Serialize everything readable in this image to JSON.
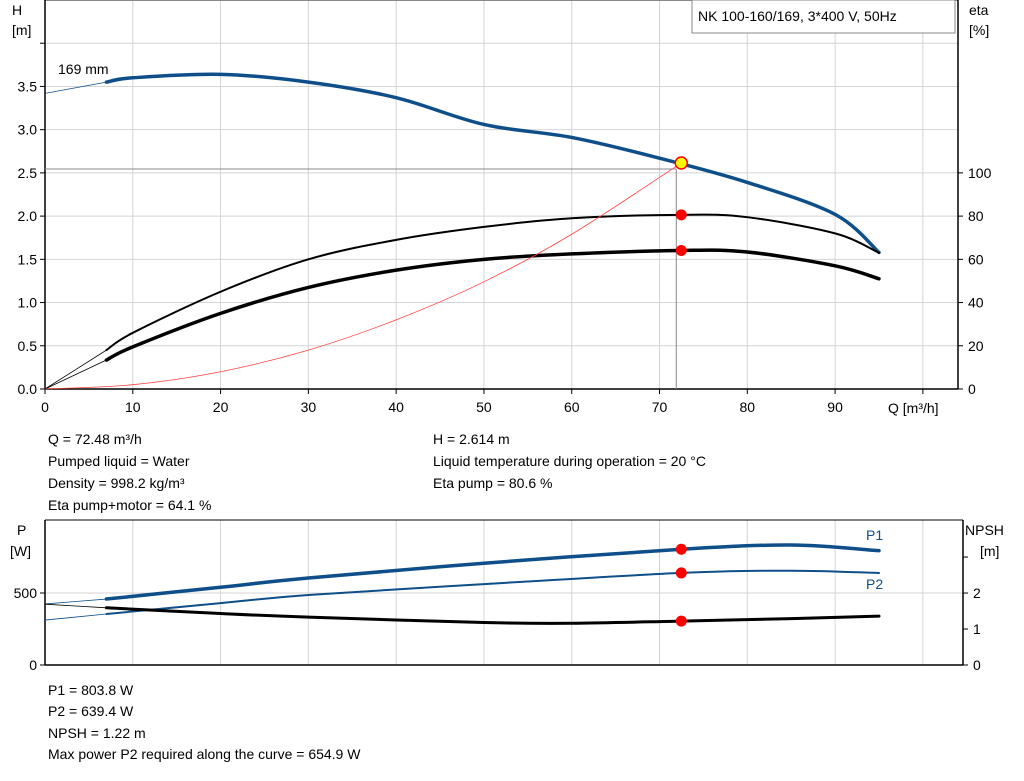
{
  "title_box": "NK 100-160/169, 3*400 V, 50Hz",
  "colors": {
    "head": "#0e4f8a",
    "power": "#0e4f8a",
    "efficiency": "#000000",
    "npsh": "#000000",
    "system": "#ff4040",
    "duty_point": "#ff0000",
    "duty_point_head": "#ffff00"
  },
  "info_top": [
    "Q = 72.48 m³/h",
    "Pumped liquid = Water",
    "Density = 998.2 kg/m³",
    "Eta pump+motor = 64.1 %"
  ],
  "info_top_right": [
    "H = 2.614 m",
    "Liquid temperature during operation = 20 °C",
    "Eta pump = 80.6 %"
  ],
  "info_bottom": [
    "P1 = 803.8 W",
    "P2 = 639.4 W",
    "NPSH = 1.22 m",
    "Max power P2 required along the curve = 654.9 W"
  ],
  "chart_data": [
    {
      "type": "line",
      "xlabel": "Q [m³/h]",
      "ylabel": "H\n[m]",
      "ylabel_lines": [
        "H",
        "[m]"
      ],
      "y2label_lines": [
        "eta",
        "[%]"
      ],
      "xlim": [
        0,
        104
      ],
      "ylim": [
        0,
        4.5
      ],
      "y2lim": [
        0,
        180
      ],
      "xticks": [
        "0",
        "10",
        "20",
        "30",
        "40",
        "50",
        "60",
        "70",
        "80",
        "90"
      ],
      "yticks": [
        "0.0",
        "0.5",
        "1.0",
        "1.5",
        "2.0",
        "2.5",
        "3.0",
        "3.5"
      ],
      "y2ticks": [
        "0",
        "20",
        "40",
        "60",
        "80",
        "100"
      ],
      "grid": true,
      "curve_label": "169 mm",
      "duty_point": {
        "Q": 72.48,
        "H": 2.614,
        "eta_pump": 80.6,
        "eta_total": 64.1
      },
      "series": [
        {
          "key": "head",
          "axis": "left",
          "x": [
            7,
            10,
            20,
            30,
            40,
            50,
            60,
            70,
            80,
            90,
            95
          ],
          "y": [
            3.55,
            3.6,
            3.64,
            3.55,
            3.37,
            3.06,
            2.91,
            2.67,
            2.39,
            2.02,
            1.58
          ],
          "extrapolated": {
            "x": [
              0,
              7
            ],
            "y": [
              3.42,
              3.55
            ]
          }
        },
        {
          "key": "eta_pump",
          "axis": "right",
          "x": [
            7,
            10,
            20,
            30,
            40,
            50,
            60,
            72.48,
            80,
            90,
            95
          ],
          "y": [
            18,
            26,
            45,
            60,
            69,
            75,
            79,
            80.6,
            79.5,
            72,
            63
          ],
          "extrapolated": {
            "x": [
              0,
              7
            ],
            "y": [
              0,
              18
            ]
          }
        },
        {
          "key": "eta_total",
          "axis": "right",
          "x": [
            7,
            10,
            20,
            30,
            40,
            50,
            60,
            72.48,
            80,
            90,
            95
          ],
          "y": [
            13.4,
            19.5,
            35,
            47,
            55,
            60,
            62.5,
            64.1,
            63.4,
            57,
            51
          ],
          "extrapolated": {
            "x": [
              0,
              7
            ],
            "y": [
              0,
              13.4
            ]
          }
        },
        {
          "key": "system",
          "axis": "left",
          "x": [
            0,
            10,
            20,
            30,
            40,
            50,
            60,
            72.48
          ],
          "y": [
            0,
            0.05,
            0.2,
            0.45,
            0.8,
            1.24,
            1.79,
            2.614
          ]
        }
      ]
    },
    {
      "type": "line",
      "ylabel_lines": [
        "P",
        "[W]"
      ],
      "y2label_lines": [
        "NPSH",
        "[m]"
      ],
      "xlim": [
        0,
        104
      ],
      "ylim": [
        0,
        1007
      ],
      "y2lim": [
        0,
        4.03
      ],
      "yticks": [
        "0",
        "500"
      ],
      "y2ticks": [
        "0",
        "1",
        "2"
      ],
      "grid": true,
      "duty_point": {
        "Q": 72.48,
        "P1": 803.8,
        "P2": 639.4,
        "NPSH": 1.22
      },
      "series": [
        {
          "name": "P1",
          "key": "p1",
          "axis": "left",
          "x": [
            7,
            20,
            30,
            50,
            72.48,
            85,
            95
          ],
          "y": [
            458,
            540,
            604,
            707,
            803.8,
            833,
            794
          ],
          "extrapolated": {
            "x": [
              0,
              7
            ],
            "y": [
              424,
              458
            ]
          }
        },
        {
          "name": "P2",
          "key": "p2",
          "axis": "left",
          "x": [
            7,
            20,
            30,
            50,
            72.48,
            85,
            95
          ],
          "y": [
            354,
            430,
            486,
            562,
            639.4,
            654.9,
            639
          ],
          "extrapolated": {
            "x": [
              0,
              7
            ],
            "y": [
              312,
              354
            ]
          }
        },
        {
          "key": "npsh",
          "axis": "right",
          "x": [
            7,
            20,
            30,
            50,
            60,
            72.48,
            85,
            95
          ],
          "y": [
            1.59,
            1.43,
            1.33,
            1.18,
            1.16,
            1.22,
            1.29,
            1.36
          ],
          "extrapolated": {
            "x": [
              0,
              7
            ],
            "y": [
              1.69,
              1.59
            ]
          }
        }
      ]
    }
  ]
}
